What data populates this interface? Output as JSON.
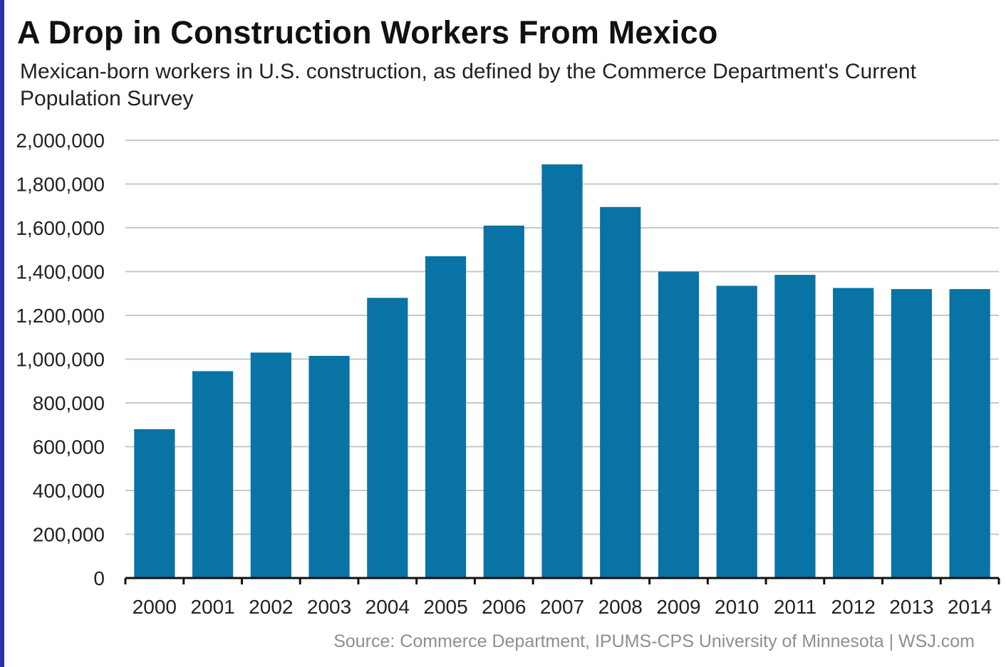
{
  "title": "A Drop in Construction Workers From Mexico",
  "subtitle": "Mexican-born workers in U.S. construction, as defined by the Commerce Department's Current Population Survey",
  "source": "Source: Commerce Department, IPUMS-CPS University of Minnesota  |  WSJ.com",
  "colors": {
    "bar": "#0a73a6",
    "grid": "#c8c8c8",
    "axis": "#111111",
    "frame": "#2f2fa8"
  },
  "chart_data": {
    "type": "bar",
    "categories": [
      "2000",
      "2001",
      "2002",
      "2003",
      "2004",
      "2005",
      "2006",
      "2007",
      "2008",
      "2009",
      "2010",
      "2011",
      "2012",
      "2013",
      "2014"
    ],
    "values": [
      680000,
      945000,
      1030000,
      1015000,
      1280000,
      1470000,
      1610000,
      1890000,
      1695000,
      1400000,
      1335000,
      1385000,
      1325000,
      1320000,
      1320000
    ],
    "yticks": [
      0,
      200000,
      400000,
      600000,
      800000,
      1000000,
      1200000,
      1400000,
      1600000,
      1800000,
      2000000
    ],
    "ytick_labels": [
      "0",
      "200,000",
      "400,000",
      "600,000",
      "800,000",
      "1,000,000",
      "1,200,000",
      "1,400,000",
      "1,600,000",
      "1,800,000",
      "2,000,000"
    ],
    "ylim": [
      0,
      2000000
    ],
    "grid": true,
    "legend": "none"
  }
}
